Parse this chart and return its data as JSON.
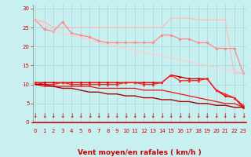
{
  "background_color": "#c8f0f0",
  "plot_bg": "#c8f0f0",
  "grid_color": "#a0d8d8",
  "xlabel": "Vent moyen/en rafales ( km/h )",
  "xlim": [
    -0.3,
    23.3
  ],
  "ylim": [
    0,
    31
  ],
  "yticks": [
    0,
    5,
    10,
    15,
    20,
    25,
    30
  ],
  "xticks": [
    0,
    1,
    2,
    3,
    4,
    5,
    6,
    7,
    8,
    9,
    10,
    11,
    12,
    13,
    14,
    15,
    16,
    17,
    18,
    19,
    20,
    21,
    22,
    23
  ],
  "lines": [
    {
      "name": "light_pink_flat_top",
      "color": "#ffbbbb",
      "lw": 0.9,
      "marker": null,
      "x": [
        0,
        1,
        2,
        3,
        4,
        5,
        6,
        7,
        8,
        9,
        10,
        11,
        12,
        13,
        14,
        15,
        16,
        17,
        18,
        19,
        20,
        21,
        22,
        23
      ],
      "y": [
        27,
        26.5,
        25,
        25,
        25,
        25,
        25,
        25,
        25,
        25,
        25,
        25,
        25,
        25,
        25,
        27.5,
        27.5,
        27.5,
        27,
        27,
        27,
        27,
        13,
        13
      ]
    },
    {
      "name": "pink_diamond_markers",
      "color": "#ff8888",
      "lw": 0.9,
      "marker": "D",
      "ms": 1.8,
      "x": [
        0,
        1,
        2,
        3,
        4,
        5,
        6,
        7,
        8,
        9,
        10,
        11,
        12,
        13,
        14,
        15,
        16,
        17,
        18,
        19,
        20,
        21,
        22,
        23
      ],
      "y": [
        27,
        24.5,
        24,
        26.5,
        23.5,
        23,
        22.5,
        21.5,
        21,
        21,
        21,
        21,
        21,
        21,
        23,
        23,
        22,
        22,
        21,
        21,
        19.5,
        19.5,
        19.5,
        13
      ]
    },
    {
      "name": "light_pink_declining",
      "color": "#ffcccc",
      "lw": 0.9,
      "marker": null,
      "x": [
        0,
        1,
        2,
        3,
        4,
        5,
        6,
        7,
        8,
        9,
        10,
        11,
        12,
        13,
        14,
        15,
        16,
        17,
        18,
        19,
        20,
        21,
        22,
        23
      ],
      "y": [
        27,
        26,
        24,
        23.5,
        23,
        22.5,
        22,
        21,
        20.5,
        20,
        19.5,
        19,
        18.5,
        18,
        17.5,
        17,
        16.5,
        16,
        15.5,
        15,
        14.5,
        14,
        13.5,
        13
      ]
    },
    {
      "name": "red_flat_with_dot",
      "color": "#cc0000",
      "lw": 1.0,
      "marker": "o",
      "ms": 1.8,
      "x": [
        0,
        1,
        2,
        3,
        4,
        5,
        6,
        7,
        8,
        9,
        10,
        11,
        12,
        13,
        14,
        15,
        16,
        17,
        18,
        19,
        20,
        21,
        22,
        23
      ],
      "y": [
        10.5,
        10.5,
        10.5,
        10.5,
        10.5,
        10.5,
        10.5,
        10.5,
        10.5,
        10.5,
        10.5,
        10.5,
        10.5,
        10.5,
        10.5,
        12.5,
        12,
        11.5,
        11.5,
        11.5,
        8.5,
        7,
        6.5,
        4
      ]
    },
    {
      "name": "red_triangle_markers",
      "color": "#ff2222",
      "lw": 0.9,
      "marker": "^",
      "ms": 2.0,
      "x": [
        0,
        1,
        2,
        3,
        4,
        5,
        6,
        7,
        8,
        9,
        10,
        11,
        12,
        13,
        14,
        15,
        16,
        17,
        18,
        19,
        20,
        21,
        22,
        23
      ],
      "y": [
        10.5,
        10,
        10,
        10.5,
        10,
        10,
        10,
        10,
        10,
        10,
        10.5,
        10.5,
        10,
        10,
        10.5,
        12.5,
        11,
        11,
        11,
        11.5,
        8.5,
        7.5,
        6.5,
        4.5
      ]
    },
    {
      "name": "red_declining1",
      "color": "#ee1111",
      "lw": 0.9,
      "marker": null,
      "x": [
        0,
        1,
        2,
        3,
        4,
        5,
        6,
        7,
        8,
        9,
        10,
        11,
        12,
        13,
        14,
        15,
        16,
        17,
        18,
        19,
        20,
        21,
        22,
        23
      ],
      "y": [
        10,
        9.5,
        9.5,
        9.5,
        9.5,
        9.5,
        9.5,
        9,
        9,
        9,
        9,
        9,
        8.5,
        8.5,
        8.5,
        8,
        7.5,
        7,
        6.5,
        6,
        5.5,
        5,
        5,
        4
      ]
    },
    {
      "name": "dark_red_declining2",
      "color": "#aa0000",
      "lw": 1.0,
      "marker": null,
      "x": [
        0,
        1,
        2,
        3,
        4,
        5,
        6,
        7,
        8,
        9,
        10,
        11,
        12,
        13,
        14,
        15,
        16,
        17,
        18,
        19,
        20,
        21,
        22,
        23
      ],
      "y": [
        10,
        10,
        9.5,
        9,
        9,
        8.5,
        8,
        8,
        7.5,
        7.5,
        7,
        7,
        6.5,
        6.5,
        6,
        6,
        5.5,
        5.5,
        5,
        5,
        4.5,
        4.5,
        4,
        4
      ]
    }
  ],
  "tick_color": "#cc0000",
  "label_color": "#cc0000",
  "tick_fontsize": 5.0,
  "label_fontsize": 6.5
}
